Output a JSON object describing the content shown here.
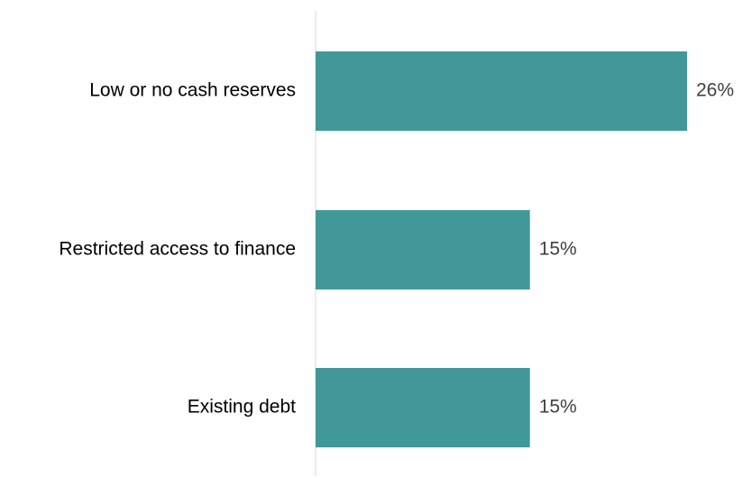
{
  "chart_data": {
    "type": "bar",
    "orientation": "horizontal",
    "categories": [
      "Low or no cash reserves",
      "Restricted access to finance",
      "Existing debt"
    ],
    "values": [
      26,
      15,
      15
    ],
    "value_labels": [
      "26%",
      "15%",
      "15%"
    ],
    "unit": "%",
    "title": "",
    "xlabel": "",
    "ylabel": "",
    "xlim": [
      0,
      30
    ],
    "grid": false,
    "legend": "none",
    "colors": {
      "bar": "#429898",
      "axis": "#d9d9d9"
    }
  }
}
